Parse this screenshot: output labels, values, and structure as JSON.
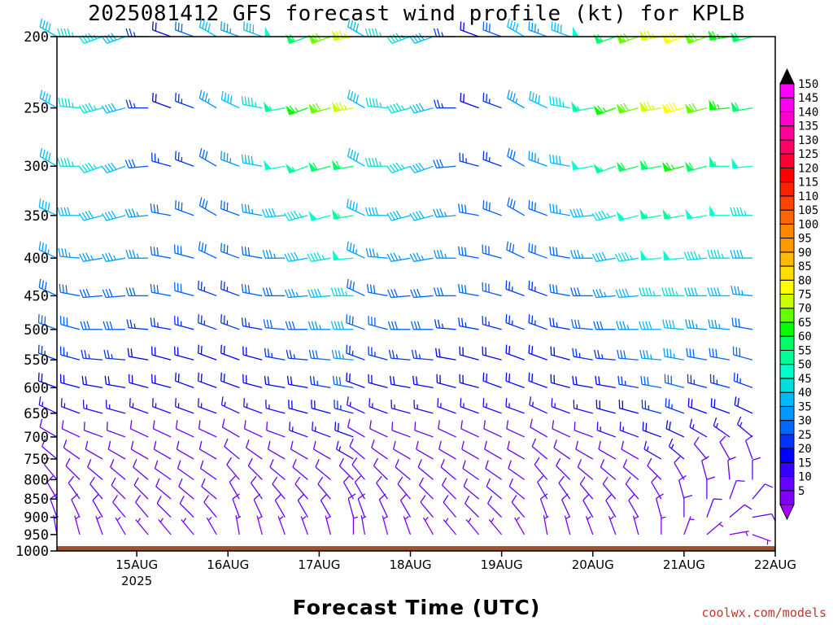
{
  "header": {
    "title": "2025081412 GFS forecast wind profile (kt) for KPLB"
  },
  "footer": {
    "xlabel": "Forecast Time (UTC)",
    "credit": "coolwx.com/models"
  },
  "chart_data": {
    "type": "wind-barb-profile",
    "title": "2025081412 GFS forecast wind profile (kt) for KPLB",
    "xlabel": "Forecast Time (UTC)",
    "ylabel": "",
    "y_axis": {
      "scale": "log-pressure",
      "inverted": true,
      "unit": "hPa",
      "ticks": [
        200,
        250,
        300,
        350,
        400,
        450,
        500,
        550,
        600,
        650,
        700,
        750,
        800,
        850,
        900,
        950,
        1000
      ],
      "range": [
        1000,
        200
      ]
    },
    "x_axis": {
      "unit": "forecast hour",
      "range": [
        -9,
        180
      ],
      "step_hours": 6,
      "ticks": [
        {
          "label": "15AUG",
          "sublabel": "2025",
          "hour": 12
        },
        {
          "label": "16AUG",
          "sublabel": "",
          "hour": 36
        },
        {
          "label": "17AUG",
          "sublabel": "",
          "hour": 60
        },
        {
          "label": "18AUG",
          "sublabel": "",
          "hour": 84
        },
        {
          "label": "19AUG",
          "sublabel": "",
          "hour": 108
        },
        {
          "label": "20AUG",
          "sublabel": "",
          "hour": 132
        },
        {
          "label": "21AUG",
          "sublabel": "",
          "hour": 156
        },
        {
          "label": "22AUG",
          "sublabel": "",
          "hour": 180
        }
      ]
    },
    "colorbar": {
      "unit": "kt",
      "levels": [
        5,
        10,
        15,
        20,
        25,
        30,
        35,
        40,
        45,
        50,
        55,
        60,
        65,
        70,
        75,
        80,
        85,
        90,
        95,
        100,
        105,
        110,
        115,
        120,
        125,
        130,
        135,
        140,
        145,
        150
      ],
      "colors": [
        "#8000ff",
        "#6600ff",
        "#3300ff",
        "#0000ff",
        "#0033ff",
        "#0066ff",
        "#0099ff",
        "#00bbff",
        "#00dddd",
        "#00ffcc",
        "#00ff99",
        "#00ff66",
        "#00ff00",
        "#66ff00",
        "#ccff00",
        "#ffff00",
        "#ffdd00",
        "#ffbb00",
        "#ff9900",
        "#ff8800",
        "#ff6600",
        "#ff4400",
        "#ff2200",
        "#ff0000",
        "#ff0033",
        "#ff0066",
        "#ff0099",
        "#ff00cc",
        "#ff00ee",
        "#ff00ff"
      ],
      "under_color": "#aa00ff",
      "over_color": "#000000"
    },
    "levels_hpa": [
      200,
      250,
      300,
      350,
      400,
      450,
      500,
      550,
      600,
      650,
      700,
      750,
      800,
      850,
      900,
      950
    ],
    "ground": {
      "color": "#a0522d",
      "surface_pressure_hpa": 985
    },
    "segments": [
      {
        "hours": [
          -9,
          69
        ],
        "note": "first forecast block"
      },
      {
        "hours": [
          72,
          180
        ],
        "note": "second forecast block"
      }
    ],
    "wind_profile": {
      "200": {
        "dir": [
          300,
          270,
          250,
          250,
          270,
          290,
          290,
          300,
          290,
          290,
          270,
          250,
          250,
          260,
          250,
          250,
          260,
          255,
          255,
          255,
          260,
          260,
          265,
          265,
          270,
          270,
          280,
          275,
          280,
          275,
          275,
          275
        ],
        "spd": [
          40,
          45,
          45,
          40,
          25,
          20,
          30,
          40,
          35,
          40,
          50,
          60,
          70,
          75,
          80,
          70,
          65,
          60,
          65,
          70,
          75,
          80,
          90,
          95,
          75,
          60,
          50,
          50,
          50,
          55,
          60,
          60
        ]
      },
      "250": {
        "dir": [
          300,
          275,
          255,
          255,
          270,
          290,
          290,
          300,
          295,
          280,
          260,
          250,
          255,
          260,
          255,
          255,
          265,
          260,
          265,
          265,
          270,
          275,
          280,
          285,
          290,
          285,
          280,
          280,
          275,
          275,
          275,
          275
        ],
        "spd": [
          40,
          45,
          45,
          40,
          25,
          20,
          25,
          35,
          40,
          45,
          55,
          65,
          70,
          75,
          80,
          70,
          65,
          60,
          65,
          65,
          70,
          60,
          55,
          55,
          50,
          50,
          55,
          55,
          55,
          55,
          55,
          55
        ]
      },
      "300": {
        "dir": [
          300,
          270,
          250,
          250,
          265,
          285,
          290,
          300,
          290,
          280,
          260,
          250,
          255,
          260,
          255,
          255,
          270,
          265,
          270,
          270,
          270,
          275,
          280,
          285,
          285,
          285,
          280,
          280,
          280,
          280,
          280,
          280
        ],
        "spd": [
          40,
          45,
          45,
          40,
          30,
          25,
          25,
          30,
          35,
          40,
          50,
          55,
          60,
          60,
          65,
          60,
          55,
          50,
          55,
          55,
          50,
          50,
          45,
          45,
          45,
          45,
          45,
          45,
          45,
          45,
          45,
          45
        ]
      },
      "350": {
        "dir": [
          295,
          270,
          255,
          255,
          265,
          280,
          290,
          300,
          290,
          280,
          265,
          255,
          255,
          260,
          260,
          260,
          270,
          270,
          270,
          275,
          275,
          275,
          280,
          285,
          285,
          285,
          280,
          280,
          280,
          280,
          280,
          280
        ],
        "spd": [
          40,
          40,
          40,
          40,
          35,
          30,
          30,
          30,
          30,
          35,
          40,
          45,
          50,
          55,
          55,
          50,
          50,
          45,
          45,
          45,
          45,
          40,
          40,
          40,
          40,
          40,
          40,
          40,
          40,
          40,
          40,
          40
        ]
      },
      "400": {
        "dir": [
          295,
          275,
          260,
          260,
          270,
          280,
          285,
          295,
          290,
          280,
          270,
          260,
          260,
          265,
          265,
          265,
          270,
          270,
          275,
          275,
          275,
          280,
          280,
          285,
          285,
          285,
          280,
          280,
          280,
          280,
          280,
          280
        ],
        "spd": [
          35,
          35,
          35,
          35,
          35,
          30,
          30,
          30,
          30,
          30,
          35,
          40,
          45,
          50,
          50,
          45,
          45,
          40,
          40,
          40,
          40,
          40,
          35,
          35,
          35,
          35,
          35,
          35,
          35,
          35,
          35,
          35
        ]
      },
      "450": {
        "dir": [
          295,
          280,
          265,
          265,
          270,
          280,
          285,
          290,
          290,
          280,
          270,
          265,
          265,
          270,
          270,
          270,
          270,
          275,
          275,
          280,
          280,
          280,
          285,
          285,
          285,
          285,
          285,
          280,
          280,
          280,
          280,
          280
        ],
        "spd": [
          30,
          30,
          30,
          30,
          30,
          30,
          30,
          25,
          25,
          30,
          30,
          35,
          40,
          45,
          45,
          40,
          40,
          35,
          35,
          35,
          35,
          35,
          30,
          30,
          30,
          30,
          30,
          30,
          30,
          30,
          30,
          30
        ]
      },
      "500": {
        "dir": [
          290,
          285,
          270,
          270,
          275,
          280,
          285,
          290,
          290,
          280,
          275,
          270,
          270,
          270,
          275,
          275,
          275,
          280,
          280,
          280,
          285,
          285,
          285,
          290,
          290,
          290,
          285,
          285,
          280,
          280,
          280,
          280
        ],
        "spd": [
          30,
          30,
          30,
          30,
          25,
          25,
          25,
          25,
          25,
          25,
          30,
          30,
          35,
          40,
          40,
          35,
          35,
          30,
          30,
          30,
          30,
          30,
          30,
          30,
          30,
          30,
          30,
          30,
          30,
          30,
          30,
          30
        ]
      },
      "550": {
        "dir": [
          290,
          285,
          275,
          275,
          280,
          285,
          285,
          290,
          290,
          285,
          280,
          275,
          275,
          275,
          280,
          280,
          280,
          285,
          285,
          285,
          290,
          290,
          290,
          290,
          295,
          295,
          290,
          290,
          285,
          285,
          285,
          285
        ],
        "spd": [
          25,
          25,
          25,
          25,
          20,
          20,
          20,
          20,
          20,
          20,
          25,
          25,
          30,
          35,
          35,
          30,
          30,
          30,
          25,
          25,
          25,
          25,
          25,
          25,
          25,
          25,
          25,
          25,
          25,
          25,
          25,
          25
        ]
      },
      "600": {
        "dir": [
          290,
          285,
          280,
          280,
          285,
          285,
          290,
          290,
          290,
          285,
          280,
          280,
          280,
          280,
          285,
          285,
          285,
          290,
          290,
          290,
          295,
          295,
          295,
          295,
          300,
          300,
          295,
          295,
          290,
          290,
          290,
          290
        ],
        "spd": [
          20,
          20,
          20,
          20,
          20,
          20,
          20,
          20,
          20,
          20,
          20,
          20,
          25,
          30,
          30,
          25,
          25,
          25,
          25,
          25,
          20,
          20,
          20,
          20,
          20,
          20,
          20,
          20,
          20,
          20,
          20,
          20
        ]
      },
      "650": {
        "dir": [
          295,
          290,
          285,
          285,
          290,
          290,
          290,
          290,
          295,
          290,
          285,
          285,
          285,
          285,
          290,
          290,
          290,
          295,
          295,
          300,
          300,
          300,
          300,
          300,
          305,
          305,
          300,
          300,
          295,
          295,
          295,
          295
        ],
        "spd": [
          15,
          15,
          15,
          15,
          15,
          15,
          15,
          15,
          15,
          15,
          15,
          20,
          20,
          25,
          25,
          20,
          20,
          20,
          20,
          20,
          20,
          20,
          20,
          20,
          20,
          20,
          20,
          20,
          20,
          20,
          20,
          20
        ]
      },
      "700": {
        "dir": [
          300,
          295,
          290,
          290,
          295,
          295,
          295,
          295,
          300,
          295,
          290,
          290,
          290,
          290,
          295,
          300,
          305,
          310,
          315,
          320,
          325,
          325,
          320,
          320,
          320,
          315,
          310,
          305,
          300,
          300,
          300,
          300
        ],
        "spd": [
          10,
          10,
          10,
          10,
          10,
          10,
          10,
          10,
          10,
          10,
          10,
          15,
          15,
          20,
          20,
          15,
          15,
          15,
          15,
          15,
          15,
          15,
          15,
          15,
          15,
          15,
          15,
          15,
          15,
          15,
          15,
          15
        ]
      },
      "750": {
        "dir": [
          310,
          305,
          300,
          300,
          300,
          300,
          300,
          300,
          310,
          305,
          300,
          300,
          300,
          300,
          310,
          320,
          330,
          340,
          345,
          350,
          350,
          345,
          340,
          335,
          330,
          325,
          320,
          315,
          310,
          310,
          310,
          310
        ],
        "spd": [
          10,
          10,
          10,
          10,
          10,
          10,
          10,
          10,
          10,
          10,
          10,
          10,
          10,
          15,
          15,
          10,
          10,
          10,
          10,
          10,
          10,
          10,
          10,
          10,
          10,
          10,
          10,
          10,
          10,
          10,
          10,
          10
        ]
      },
      "800": {
        "dir": [
          320,
          315,
          310,
          310,
          310,
          305,
          305,
          305,
          320,
          315,
          310,
          310,
          310,
          315,
          330,
          345,
          355,
          360,
          20,
          40,
          60,
          70,
          60,
          40,
          20,
          360,
          340,
          330,
          320,
          320,
          320,
          320
        ],
        "spd": [
          10,
          10,
          10,
          10,
          10,
          10,
          10,
          10,
          10,
          10,
          10,
          10,
          10,
          10,
          10,
          10,
          10,
          10,
          10,
          10,
          10,
          10,
          10,
          10,
          10,
          10,
          10,
          10,
          10,
          10,
          10,
          10
        ]
      },
      "850": {
        "dir": [
          330,
          325,
          320,
          315,
          315,
          310,
          310,
          310,
          330,
          325,
          320,
          320,
          320,
          330,
          345,
          360,
          20,
          40,
          60,
          80,
          90,
          80,
          60,
          40,
          20,
          360,
          345,
          335,
          330,
          330,
          330,
          330
        ],
        "spd": [
          10,
          10,
          10,
          10,
          10,
          10,
          10,
          10,
          10,
          10,
          10,
          10,
          10,
          10,
          10,
          10,
          10,
          10,
          10,
          10,
          10,
          10,
          10,
          10,
          10,
          10,
          10,
          10,
          10,
          10,
          10,
          10
        ]
      },
      "900": {
        "dir": [
          340,
          335,
          330,
          320,
          320,
          315,
          315,
          320,
          340,
          335,
          330,
          330,
          330,
          345,
          360,
          20,
          50,
          80,
          100,
          110,
          100,
          80,
          60,
          30,
          10,
          360,
          350,
          340,
          340,
          340,
          340,
          340
        ],
        "spd": [
          10,
          10,
          10,
          10,
          10,
          10,
          10,
          10,
          10,
          10,
          10,
          10,
          10,
          10,
          10,
          10,
          10,
          10,
          10,
          10,
          10,
          10,
          10,
          10,
          10,
          10,
          10,
          10,
          10,
          10,
          10,
          10
        ]
      },
      "950": {
        "dir": [
          350,
          345,
          340,
          330,
          320,
          320,
          320,
          330,
          350,
          345,
          340,
          340,
          345,
          360,
          20,
          50,
          80,
          110,
          120,
          110,
          90,
          70,
          40,
          20,
          360,
          350,
          350,
          350,
          350,
          350,
          350,
          350
        ],
        "spd": [
          5,
          5,
          5,
          5,
          5,
          5,
          5,
          5,
          5,
          5,
          5,
          5,
          5,
          5,
          5,
          5,
          5,
          5,
          5,
          5,
          5,
          5,
          5,
          5,
          5,
          5,
          5,
          5,
          5,
          5,
          5,
          5
        ]
      }
    }
  }
}
